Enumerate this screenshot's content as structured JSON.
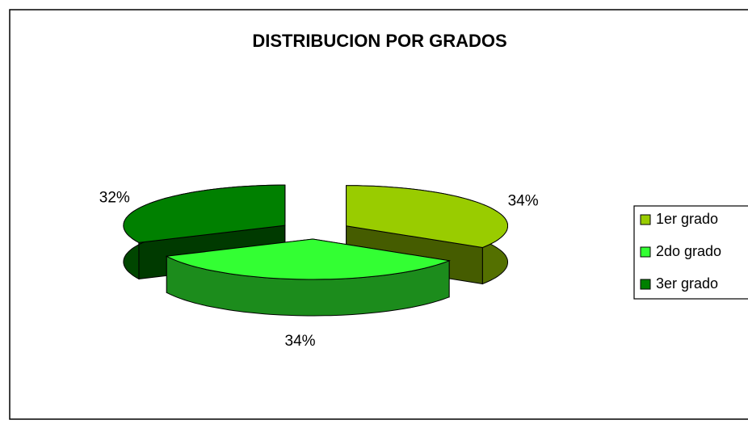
{
  "chart_data": {
    "type": "pie",
    "title": "DISTRIBUCION POR GRADOS",
    "categories": [
      "1er grado",
      "2do grado",
      "3er grado"
    ],
    "values": [
      34,
      34,
      32
    ],
    "value_labels": [
      "34%",
      "34%",
      "32%"
    ],
    "colors": [
      "#99cc00",
      "#33ff33",
      "#008000"
    ],
    "legend": "right"
  }
}
